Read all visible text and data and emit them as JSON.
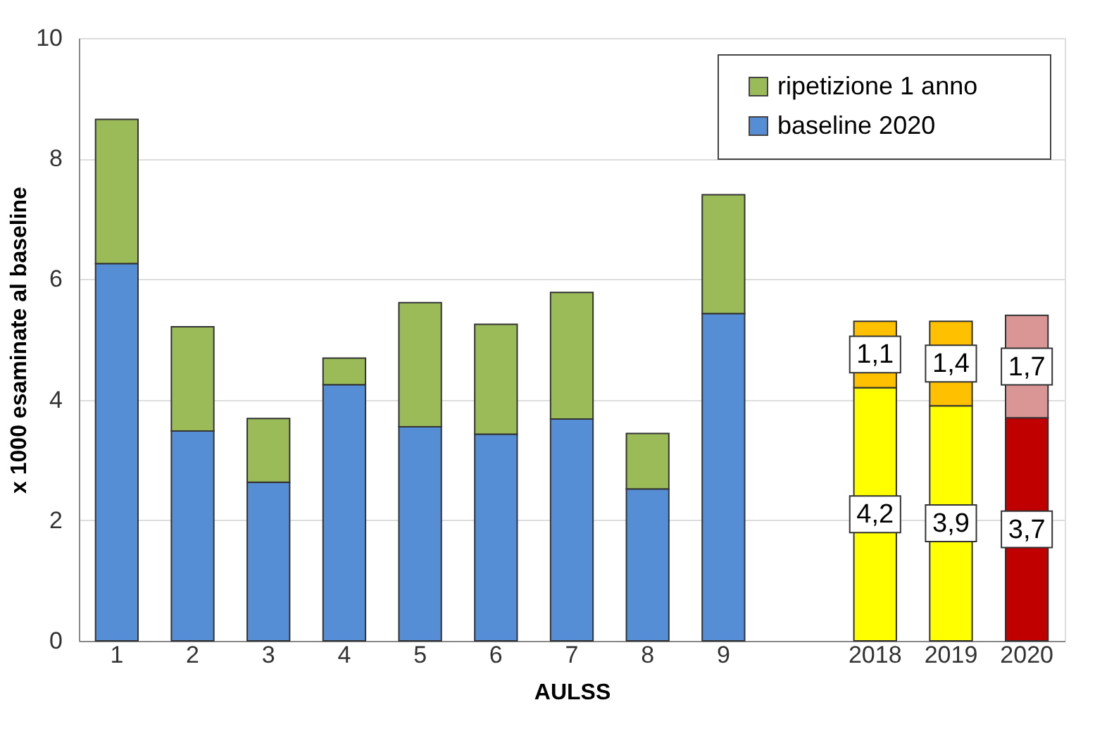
{
  "chart_data": {
    "type": "bar",
    "stacked": true,
    "xlabel": "AULSS",
    "ylabel": "x 1000 esaminate al baseline",
    "categories": [
      "1",
      "2",
      "3",
      "4",
      "5",
      "6",
      "7",
      "8",
      "9",
      null,
      "2018",
      "2019",
      "2020"
    ],
    "series": [
      {
        "name": "baseline 2020",
        "color": "#558ed5",
        "colors": [
          "#558ed5",
          "#558ed5",
          "#558ed5",
          "#558ed5",
          "#558ed5",
          "#558ed5",
          "#558ed5",
          "#558ed5",
          "#558ed5",
          null,
          "#ffff00",
          "#ffff00",
          "#c00000"
        ],
        "values": [
          6.26,
          3.48,
          2.63,
          4.25,
          3.55,
          3.43,
          3.68,
          2.52,
          5.43,
          null,
          4.2,
          3.9,
          3.7
        ],
        "value_labels": [
          null,
          null,
          null,
          null,
          null,
          null,
          null,
          null,
          null,
          null,
          "4,2",
          "3,9",
          "3,7"
        ]
      },
      {
        "name": "ripetizione 1 anno",
        "color": "#9bbb59",
        "colors": [
          "#9bbb59",
          "#9bbb59",
          "#9bbb59",
          "#9bbb59",
          "#9bbb59",
          "#9bbb59",
          "#9bbb59",
          "#9bbb59",
          "#9bbb59",
          null,
          "#ffc000",
          "#ffc000",
          "#d99694"
        ],
        "values": [
          2.39,
          1.73,
          1.06,
          0.44,
          2.06,
          1.82,
          2.1,
          0.92,
          1.97,
          null,
          1.1,
          1.4,
          1.7
        ],
        "value_labels": [
          null,
          null,
          null,
          null,
          null,
          null,
          null,
          null,
          null,
          null,
          "1,1",
          "1,4",
          "1,7"
        ]
      }
    ],
    "ylim": [
      0,
      10
    ],
    "yticks": [
      0,
      2,
      4,
      6,
      8,
      10
    ],
    "grid": "y",
    "legend": "top right"
  }
}
